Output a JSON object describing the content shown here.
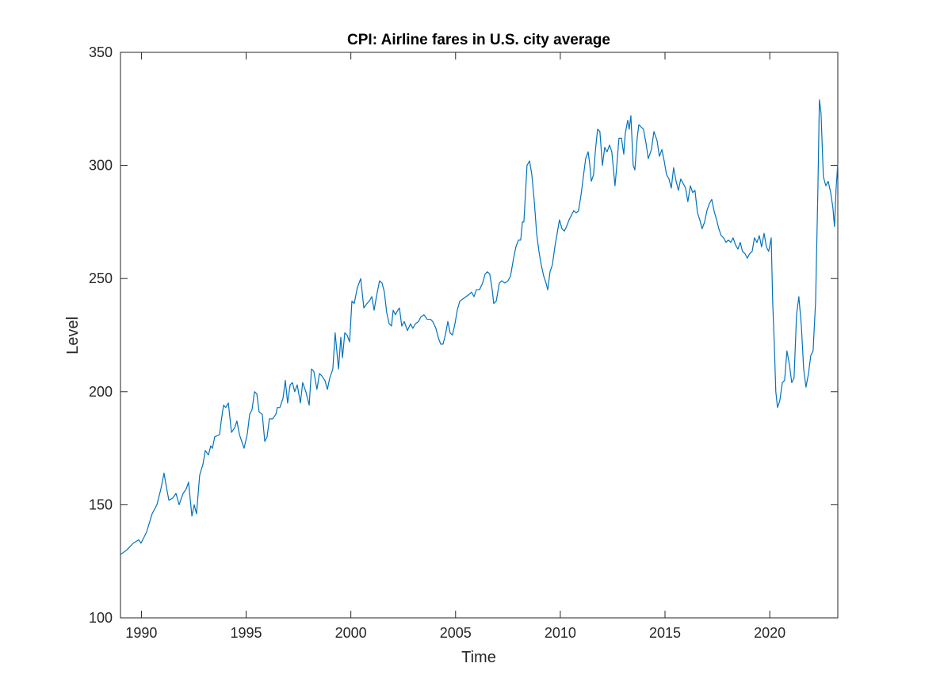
{
  "chart_data": {
    "type": "line",
    "title": "CPI: Airline fares in U.S. city average",
    "x_label": "Time",
    "y_label": "Level",
    "xlim": [
      1989.0,
      2023.25
    ],
    "ylim": [
      100,
      350
    ],
    "xticks": [
      1990,
      1995,
      2000,
      2005,
      2010,
      2015,
      2020
    ],
    "yticks": [
      100,
      150,
      200,
      250,
      300,
      350
    ],
    "grid": false,
    "x": [
      1989.0,
      1989.3,
      1989.61,
      1989.87,
      1989.98,
      1990.25,
      1990.51,
      1990.74,
      1990.93,
      1991.08,
      1991.19,
      1991.31,
      1991.5,
      1991.65,
      1991.8,
      1991.99,
      1992.14,
      1992.25,
      1992.41,
      1992.52,
      1992.63,
      1992.78,
      1992.94,
      1993.05,
      1993.2,
      1993.31,
      1993.39,
      1993.5,
      1993.73,
      1993.81,
      1993.92,
      1994.03,
      1994.15,
      1994.3,
      1994.45,
      1994.56,
      1994.68,
      1994.79,
      1994.9,
      1995.05,
      1995.17,
      1995.28,
      1995.4,
      1995.51,
      1995.62,
      1995.77,
      1995.89,
      1996.0,
      1996.11,
      1996.27,
      1996.42,
      1996.49,
      1996.61,
      1996.76,
      1996.87,
      1996.98,
      1997.1,
      1997.21,
      1997.32,
      1997.44,
      1997.59,
      1997.7,
      1997.85,
      1998.01,
      1998.12,
      1998.23,
      1998.38,
      1998.5,
      1998.61,
      1998.76,
      1998.88,
      1998.99,
      1999.14,
      1999.25,
      1999.41,
      1999.52,
      1999.6,
      1999.71,
      1999.82,
      1999.94,
      2000.05,
      2000.16,
      2000.31,
      2000.47,
      2000.62,
      2000.77,
      2000.88,
      2001.0,
      2001.11,
      2001.22,
      2001.37,
      2001.49,
      2001.6,
      2001.71,
      2001.83,
      2001.94,
      2002.02,
      2002.13,
      2002.24,
      2002.32,
      2002.43,
      2002.55,
      2002.7,
      2002.85,
      2002.96,
      2003.08,
      2003.23,
      2003.34,
      2003.49,
      2003.64,
      2003.8,
      2003.91,
      2004.06,
      2004.17,
      2004.29,
      2004.4,
      2004.51,
      2004.63,
      2004.74,
      2004.85,
      2004.97,
      2005.08,
      2005.2,
      2005.35,
      2005.5,
      2005.65,
      2005.76,
      2005.88,
      2005.99,
      2006.14,
      2006.29,
      2006.41,
      2006.52,
      2006.63,
      2006.75,
      2006.82,
      2006.94,
      2007.09,
      2007.2,
      2007.35,
      2007.5,
      2007.62,
      2007.77,
      2007.88,
      2008.0,
      2008.11,
      2008.19,
      2008.26,
      2008.34,
      2008.41,
      2008.53,
      2008.64,
      2008.75,
      2008.87,
      2008.98,
      2009.09,
      2009.21,
      2009.32,
      2009.4,
      2009.51,
      2009.62,
      2009.74,
      2009.85,
      2009.96,
      2010.08,
      2010.19,
      2010.3,
      2010.42,
      2010.53,
      2010.64,
      2010.76,
      2010.87,
      2010.99,
      2011.1,
      2011.21,
      2011.33,
      2011.4,
      2011.48,
      2011.59,
      2011.67,
      2011.78,
      2011.89,
      2012.01,
      2012.12,
      2012.23,
      2012.35,
      2012.46,
      2012.54,
      2012.61,
      2012.69,
      2012.8,
      2012.92,
      2013.03,
      2013.1,
      2013.22,
      2013.29,
      2013.37,
      2013.48,
      2013.56,
      2013.67,
      2013.75,
      2013.86,
      2013.97,
      2014.09,
      2014.2,
      2014.35,
      2014.47,
      2014.62,
      2014.73,
      2014.85,
      2014.96,
      2015.07,
      2015.19,
      2015.3,
      2015.41,
      2015.53,
      2015.64,
      2015.75,
      2015.87,
      2015.98,
      2016.09,
      2016.21,
      2016.32,
      2016.43,
      2016.55,
      2016.66,
      2016.77,
      2016.89,
      2017.0,
      2017.11,
      2017.23,
      2017.34,
      2017.46,
      2017.57,
      2017.68,
      2017.8,
      2017.91,
      2018.02,
      2018.14,
      2018.25,
      2018.36,
      2018.48,
      2018.59,
      2018.7,
      2018.82,
      2018.93,
      2019.04,
      2019.16,
      2019.27,
      2019.39,
      2019.5,
      2019.61,
      2019.73,
      2019.84,
      2019.95,
      2020.07,
      2020.14,
      2020.22,
      2020.29,
      2020.37,
      2020.48,
      2020.6,
      2020.71,
      2020.82,
      2020.94,
      2021.05,
      2021.16,
      2021.28,
      2021.39,
      2021.51,
      2021.62,
      2021.73,
      2021.85,
      2021.96,
      2022.07,
      2022.19,
      2022.3,
      2022.37,
      2022.45,
      2022.56,
      2022.68,
      2022.79,
      2022.91,
      2023.02,
      2023.09,
      2023.17,
      2023.25
    ],
    "series": [
      {
        "name": "Airline fares",
        "color": "#0072BD",
        "values": [
          128,
          130,
          133,
          134.5,
          133,
          138,
          146,
          150,
          157,
          164,
          158,
          152,
          153,
          155,
          150,
          155,
          157,
          160,
          145,
          150,
          146,
          163,
          168,
          174,
          172,
          176,
          175,
          180,
          181,
          187,
          194,
          193,
          195,
          182,
          184,
          187,
          181,
          178,
          175,
          181,
          190,
          192,
          200,
          199,
          191,
          190,
          178,
          180,
          188,
          188,
          190,
          193,
          193,
          197,
          205,
          195,
          203,
          204,
          200,
          203,
          195,
          204,
          200,
          194,
          210,
          209,
          201,
          208,
          207,
          205,
          201,
          206,
          210,
          226,
          210,
          224,
          215,
          226,
          225,
          222,
          240,
          239,
          246,
          250,
          237,
          239,
          240,
          242,
          236,
          242,
          249,
          248,
          244,
          235,
          230,
          229,
          236,
          234,
          236,
          237,
          229,
          231,
          227,
          230,
          228,
          230,
          231,
          233,
          234,
          232,
          232,
          231,
          228,
          224,
          221,
          221,
          225,
          231,
          226,
          225,
          230,
          236,
          240,
          241,
          242,
          243,
          244,
          242,
          245,
          245,
          248,
          252,
          253,
          252,
          245,
          239,
          240,
          248,
          249,
          248,
          249,
          251,
          259,
          264,
          267,
          267,
          275,
          275,
          288,
          300,
          302,
          296,
          285,
          270,
          262,
          256,
          251,
          248,
          245,
          253,
          256,
          264,
          270,
          276,
          272,
          271,
          273,
          276,
          278,
          280,
          279,
          280,
          287,
          295,
          303,
          306,
          301,
          293,
          296,
          306,
          316,
          315,
          300,
          308,
          306,
          309,
          306,
          298,
          291,
          299,
          312,
          312,
          305,
          314,
          320,
          316,
          322,
          300,
          298,
          312,
          318,
          317,
          316,
          310,
          303,
          307,
          315,
          311,
          304,
          307,
          302,
          296,
          294,
          290,
          299,
          293,
          289,
          294,
          292,
          290,
          284,
          291,
          288,
          289,
          279,
          276,
          272,
          275,
          280,
          283,
          285,
          280,
          276,
          272,
          269,
          268,
          266,
          267,
          266,
          268,
          265,
          263,
          266,
          262,
          261,
          259,
          261,
          262,
          268,
          266,
          269,
          264,
          270,
          264,
          262,
          268,
          240,
          220,
          200,
          193,
          196,
          204,
          205,
          218,
          212,
          204,
          206,
          234,
          242,
          229,
          210,
          202,
          208,
          216,
          218,
          240,
          290,
          329,
          323,
          295,
          291,
          293,
          288,
          281,
          273,
          290,
          301
        ]
      }
    ]
  }
}
